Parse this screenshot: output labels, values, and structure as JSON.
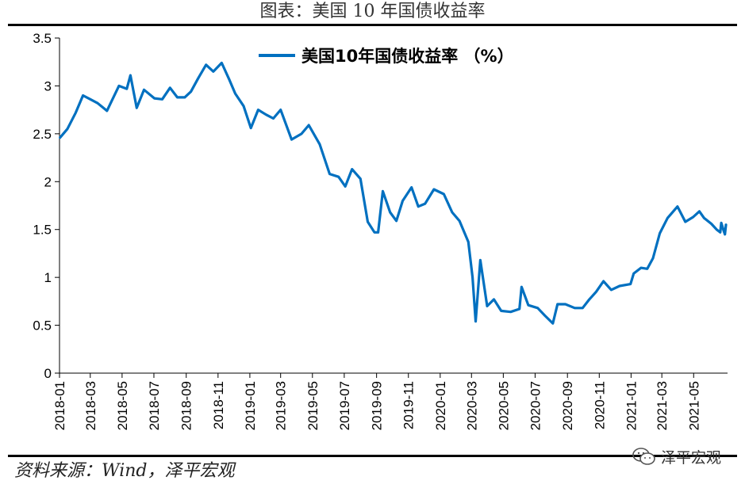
{
  "header": {
    "title": "图表：美国 10 年国债收益率"
  },
  "footer": {
    "source": "资料来源：Wind，泽平宏观",
    "brand": "泽平宏观"
  },
  "colors": {
    "line": "#0070C0",
    "axis": "#000000",
    "brand_icon": "wechat-icon"
  },
  "chart_data": {
    "type": "line",
    "title": "",
    "xlabel": "",
    "ylabel": "",
    "ylim": [
      0,
      3.5
    ],
    "y_ticks": [
      "0",
      "0.5",
      "1",
      "1.5",
      "2",
      "2.5",
      "3",
      "3.5"
    ],
    "x_ticks": [
      "2018-01",
      "2018-03",
      "2018-05",
      "2018-07",
      "2018-09",
      "2018-11",
      "2019-01",
      "2019-03",
      "2019-05",
      "2019-07",
      "2019-09",
      "2019-11",
      "2020-01",
      "2020-03",
      "2020-05",
      "2020-07",
      "2020-09",
      "2020-11",
      "2021-01",
      "2021-03",
      "2021-05"
    ],
    "legend": "美国10年国债收益率 （%）",
    "legend_position": "top-center",
    "grid": false,
    "series": [
      {
        "name": "美国10年国债收益率 （%）",
        "points": [
          [
            "2018-01-02",
            2.46
          ],
          [
            "2018-01-16",
            2.55
          ],
          [
            "2018-02-01",
            2.72
          ],
          [
            "2018-02-15",
            2.9
          ],
          [
            "2018-03-01",
            2.86
          ],
          [
            "2018-03-15",
            2.82
          ],
          [
            "2018-04-02",
            2.74
          ],
          [
            "2018-04-25",
            3.0
          ],
          [
            "2018-05-10",
            2.97
          ],
          [
            "2018-05-17",
            3.11
          ],
          [
            "2018-05-29",
            2.77
          ],
          [
            "2018-06-12",
            2.96
          ],
          [
            "2018-07-02",
            2.87
          ],
          [
            "2018-07-17",
            2.86
          ],
          [
            "2018-08-01",
            2.98
          ],
          [
            "2018-08-15",
            2.88
          ],
          [
            "2018-08-29",
            2.88
          ],
          [
            "2018-09-10",
            2.94
          ],
          [
            "2018-09-24",
            3.08
          ],
          [
            "2018-10-09",
            3.22
          ],
          [
            "2018-10-23",
            3.15
          ],
          [
            "2018-11-08",
            3.24
          ],
          [
            "2018-11-23",
            3.06
          ],
          [
            "2018-12-04",
            2.92
          ],
          [
            "2018-12-20",
            2.79
          ],
          [
            "2019-01-03",
            2.56
          ],
          [
            "2019-01-17",
            2.75
          ],
          [
            "2019-02-01",
            2.7
          ],
          [
            "2019-02-15",
            2.66
          ],
          [
            "2019-03-01",
            2.75
          ],
          [
            "2019-03-22",
            2.44
          ],
          [
            "2019-04-10",
            2.5
          ],
          [
            "2019-04-24",
            2.59
          ],
          [
            "2019-05-15",
            2.39
          ],
          [
            "2019-06-03",
            2.08
          ],
          [
            "2019-06-20",
            2.05
          ],
          [
            "2019-07-03",
            1.95
          ],
          [
            "2019-07-16",
            2.13
          ],
          [
            "2019-08-01",
            2.03
          ],
          [
            "2019-08-15",
            1.58
          ],
          [
            "2019-08-28",
            1.47
          ],
          [
            "2019-09-04",
            1.47
          ],
          [
            "2019-09-13",
            1.9
          ],
          [
            "2019-09-27",
            1.68
          ],
          [
            "2019-10-09",
            1.59
          ],
          [
            "2019-10-21",
            1.8
          ],
          [
            "2019-11-07",
            1.94
          ],
          [
            "2019-11-20",
            1.74
          ],
          [
            "2019-12-03",
            1.77
          ],
          [
            "2019-12-20",
            1.92
          ],
          [
            "2020-01-08",
            1.87
          ],
          [
            "2020-01-24",
            1.68
          ],
          [
            "2020-02-07",
            1.59
          ],
          [
            "2020-02-24",
            1.37
          ],
          [
            "2020-03-03",
            1.0
          ],
          [
            "2020-03-09",
            0.54
          ],
          [
            "2020-03-18",
            1.18
          ],
          [
            "2020-03-31",
            0.7
          ],
          [
            "2020-04-13",
            0.77
          ],
          [
            "2020-04-27",
            0.65
          ],
          [
            "2020-05-15",
            0.64
          ],
          [
            "2020-06-01",
            0.67
          ],
          [
            "2020-06-05",
            0.9
          ],
          [
            "2020-06-18",
            0.71
          ],
          [
            "2020-07-06",
            0.68
          ],
          [
            "2020-07-20",
            0.6
          ],
          [
            "2020-08-04",
            0.52
          ],
          [
            "2020-08-13",
            0.72
          ],
          [
            "2020-08-28",
            0.72
          ],
          [
            "2020-09-15",
            0.68
          ],
          [
            "2020-09-30",
            0.68
          ],
          [
            "2020-10-13",
            0.77
          ],
          [
            "2020-10-26",
            0.85
          ],
          [
            "2020-11-09",
            0.96
          ],
          [
            "2020-11-24",
            0.87
          ],
          [
            "2020-12-10",
            0.91
          ],
          [
            "2020-12-31",
            0.93
          ],
          [
            "2021-01-06",
            1.04
          ],
          [
            "2021-01-20",
            1.1
          ],
          [
            "2021-02-01",
            1.09
          ],
          [
            "2021-02-12",
            1.2
          ],
          [
            "2021-02-25",
            1.46
          ],
          [
            "2021-03-12",
            1.62
          ],
          [
            "2021-03-31",
            1.74
          ],
          [
            "2021-04-15",
            1.58
          ],
          [
            "2021-04-30",
            1.63
          ],
          [
            "2021-05-12",
            1.69
          ],
          [
            "2021-05-21",
            1.62
          ],
          [
            "2021-06-04",
            1.56
          ],
          [
            "2021-06-14",
            1.5
          ],
          [
            "2021-06-21",
            1.47
          ],
          [
            "2021-06-23",
            1.57
          ],
          [
            "2021-06-28",
            1.48
          ],
          [
            "2021-06-30",
            1.45
          ],
          [
            "2021-07-02",
            1.55
          ]
        ]
      }
    ]
  }
}
